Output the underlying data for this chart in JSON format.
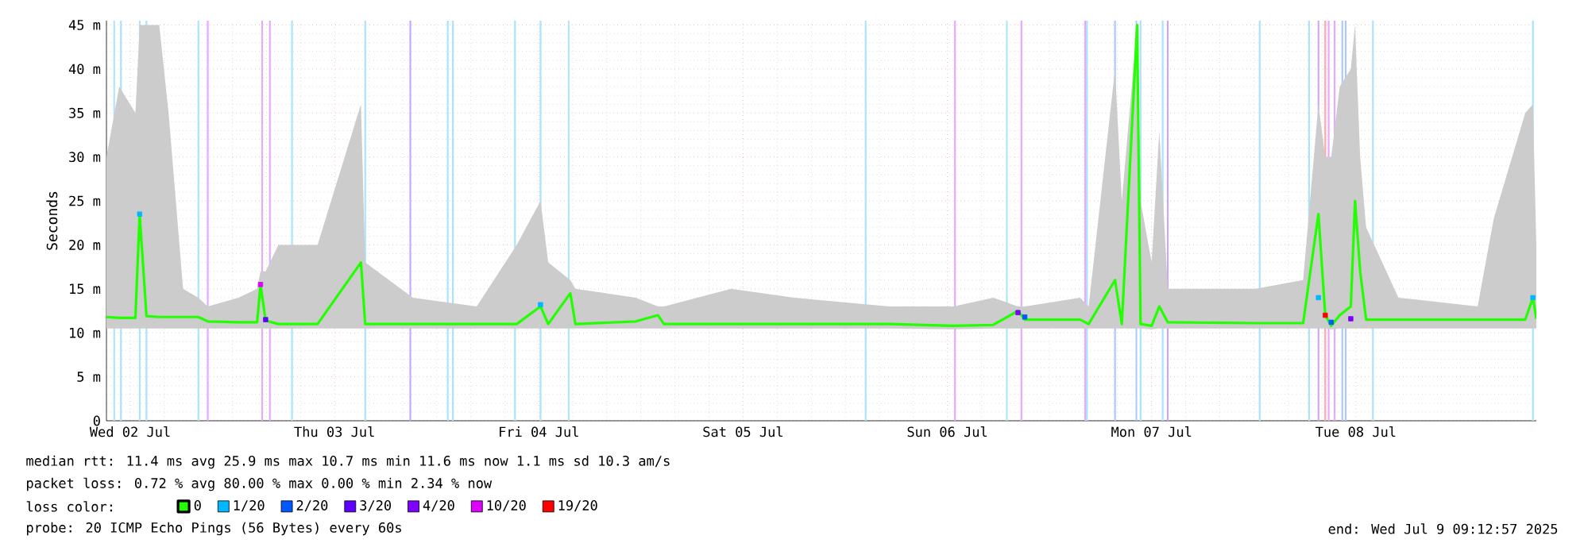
{
  "chart_data": {
    "type": "line",
    "ylabel": "Seconds",
    "legend_title": "loss color:",
    "legend": "bottom",
    "grid": true,
    "xlim": [
      "2025-07-02T09:12",
      "2025-07-09T09:12"
    ],
    "xticks": [
      {
        "value": "2025-07-02T12:00",
        "label": "Wed 02 Jul"
      },
      {
        "value": "2025-07-03T12:00",
        "label": "Thu 03 Jul"
      },
      {
        "value": "2025-07-04T12:00",
        "label": "Fri 04 Jul"
      },
      {
        "value": "2025-07-05T12:00",
        "label": "Sat 05 Jul"
      },
      {
        "value": "2025-07-06T12:00",
        "label": "Sun 06 Jul"
      },
      {
        "value": "2025-07-07T12:00",
        "label": "Mon 07 Jul"
      },
      {
        "value": "2025-07-08T12:00",
        "label": "Tue 08 Jul"
      }
    ],
    "ylim": [
      0,
      45.5
    ],
    "yticks": [
      0,
      {
        "value": 5,
        "label": "5 m"
      },
      {
        "value": 10,
        "label": "10 m"
      },
      {
        "value": 15,
        "label": "15 m"
      },
      {
        "value": 20,
        "label": "20 m"
      },
      {
        "value": 25,
        "label": "25 m"
      },
      {
        "value": 30,
        "label": "30 m"
      },
      {
        "value": 35,
        "label": "35 m"
      },
      {
        "value": 40,
        "label": "40 m"
      },
      {
        "value": 45,
        "label": "45 m"
      }
    ],
    "x": [
      "2025-07-02T09:12",
      "2025-07-02T10:42",
      "2025-07-02T12:36",
      "2025-07-02T13:06",
      "2025-07-02T13:54",
      "2025-07-02T15:24",
      "2025-07-02T16:30",
      "2025-07-02T18:12",
      "2025-07-02T20:00",
      "2025-07-02T21:06",
      "2025-07-03T00:42",
      "2025-07-03T02:54",
      "2025-07-03T03:18",
      "2025-07-03T03:54",
      "2025-07-03T05:24",
      "2025-07-03T10:00",
      "2025-07-03T15:06",
      "2025-07-03T15:36",
      "2025-07-03T21:12",
      "2025-07-04T04:42",
      "2025-07-04T09:24",
      "2025-07-04T12:12",
      "2025-07-04T13:06",
      "2025-07-04T15:42",
      "2025-07-04T16:18",
      "2025-07-04T23:24",
      "2025-07-05T02:00",
      "2025-07-05T02:42",
      "2025-07-05T10:36",
      "2025-07-05T18:00",
      "2025-07-06T05:12",
      "2025-07-06T12:42",
      "2025-07-06T17:24",
      "2025-07-06T20:18",
      "2025-07-06T21:06",
      "2025-07-07T03:36",
      "2025-07-07T04:36",
      "2025-07-07T07:42",
      "2025-07-07T08:30",
      "2025-07-07T10:18",
      "2025-07-07T10:42",
      "2025-07-07T12:00",
      "2025-07-07T12:54",
      "2025-07-07T13:54",
      "2025-07-08T00:12",
      "2025-07-08T05:48",
      "2025-07-08T07:36",
      "2025-07-08T08:24",
      "2025-07-08T09:06",
      "2025-07-08T10:06",
      "2025-07-08T11:24",
      "2025-07-08T11:54",
      "2025-07-08T12:30",
      "2025-07-08T13:12",
      "2025-07-08T17:00",
      "2025-07-09T02:18",
      "2025-07-09T04:12",
      "2025-07-09T07:54",
      "2025-07-09T08:48",
      "2025-07-09T09:12"
    ],
    "series": [
      {
        "name": "0",
        "color": "#22ff00",
        "values": [
          11.8,
          11.7,
          11.7,
          23.5,
          11.9,
          11.8,
          11.8,
          11.8,
          11.8,
          11.3,
          11.2,
          11.2,
          15.5,
          11.4,
          11.0,
          11.0,
          18.0,
          11.0,
          11.0,
          11.0,
          11.0,
          13.0,
          11.0,
          14.5,
          11.0,
          11.3,
          12.0,
          11.0,
          11.0,
          11.0,
          11.0,
          10.8,
          10.9,
          12.5,
          11.5,
          11.5,
          11.0,
          16.0,
          11.0,
          45,
          11.0,
          10.8,
          13.0,
          11.2,
          11.1,
          11.1,
          23.5,
          12.0,
          10.8,
          12.0,
          13.0,
          25.0,
          17.0,
          11.5,
          11.5,
          11.5,
          11.5,
          11.5,
          14.0,
          11.6
        ],
        "lower": [
          10.5,
          10.5,
          10.5,
          10.5,
          10.5,
          10.5,
          10.5,
          10.5,
          10.5,
          10.5,
          10.5,
          10.5,
          10.5,
          10.5,
          10.5,
          10.5,
          10.5,
          10.5,
          10.5,
          10.5,
          10.5,
          10.5,
          10.5,
          10.5,
          10.5,
          10.5,
          10.5,
          10.5,
          10.5,
          10.5,
          10.5,
          10.4,
          10.5,
          10.5,
          10.5,
          10.5,
          10.5,
          10.5,
          10.5,
          10.5,
          10.5,
          10.4,
          10.5,
          10.5,
          10.5,
          10.5,
          10.5,
          10.5,
          10.4,
          10.5,
          10.5,
          10.5,
          10.5,
          10.5,
          10.5,
          10.5,
          10.5,
          10.5,
          10.5,
          10.5
        ],
        "upper": [
          30,
          38,
          35,
          45,
          45,
          45,
          35,
          15,
          14,
          13,
          14,
          15,
          17,
          17,
          20,
          20,
          36,
          18,
          14,
          13,
          20,
          25,
          18,
          16,
          15,
          14,
          13,
          13,
          15,
          14,
          13,
          13,
          14,
          13,
          13,
          14,
          13,
          40,
          25,
          45,
          25,
          18,
          33,
          15,
          15,
          16,
          36,
          30,
          30,
          38,
          40,
          45,
          30,
          22,
          14,
          13,
          23,
          35,
          36,
          20
        ]
      },
      {
        "name": "1/20",
        "color": "#00b8ff",
        "type": "scatter",
        "marker": "square",
        "x": [
          "2025-07-02T13:06",
          "2025-07-04T12:12",
          "2025-07-08T07:36",
          "2025-07-09T08:48"
        ],
        "values": [
          23.5,
          13.2,
          14,
          14
        ]
      },
      {
        "name": "2/20",
        "color": "#0059ff",
        "type": "scatter",
        "marker": "square",
        "x": [
          "2025-07-06T21:06",
          "2025-07-08T09:06"
        ],
        "values": [
          11.8,
          11.2
        ]
      },
      {
        "name": "3/20",
        "color": "#5e00ff",
        "type": "scatter",
        "marker": "square",
        "x": [
          "2025-07-03T03:54"
        ],
        "values": [
          11.5
        ]
      },
      {
        "name": "4/20",
        "color": "#7e00ff",
        "type": "scatter",
        "marker": "square",
        "x": [
          "2025-07-06T20:18",
          "2025-07-08T11:24"
        ],
        "values": [
          12.3,
          11.6
        ]
      },
      {
        "name": "10/20",
        "color": "#dd00ff",
        "type": "scatter",
        "marker": "square",
        "x": [
          "2025-07-03T03:18"
        ],
        "values": [
          15.5
        ]
      },
      {
        "name": "19/20",
        "color": "#ff0000",
        "type": "scatter",
        "marker": "square",
        "x": [
          "2025-07-08T08:24"
        ],
        "values": [
          12.0
        ]
      }
    ],
    "ref_lines": [
      {
        "axis": "x",
        "value": "2025-07-02T10:06",
        "color": "#a8e4ff"
      },
      {
        "axis": "x",
        "value": "2025-07-02T10:54",
        "color": "#a8e4ff"
      },
      {
        "axis": "x",
        "value": "2025-07-02T13:06",
        "color": "#a8e4ff"
      },
      {
        "axis": "x",
        "value": "2025-07-02T13:54",
        "color": "#a8e4ff"
      },
      {
        "axis": "x",
        "value": "2025-07-02T20:00",
        "color": "#a8e4ff"
      },
      {
        "axis": "x",
        "value": "2025-07-03T07:00",
        "color": "#a8e4ff"
      },
      {
        "axis": "x",
        "value": "2025-07-03T15:36",
        "color": "#a8e4ff"
      },
      {
        "axis": "x",
        "value": "2025-07-04T01:18",
        "color": "#a8e4ff"
      },
      {
        "axis": "x",
        "value": "2025-07-04T01:54",
        "color": "#a8e4ff"
      },
      {
        "axis": "x",
        "value": "2025-07-04T09:12",
        "color": "#a8e4ff"
      },
      {
        "axis": "x",
        "value": "2025-07-04T12:12",
        "color": "#a8e4ff"
      },
      {
        "axis": "x",
        "value": "2025-07-04T15:30",
        "color": "#a8e4ff"
      },
      {
        "axis": "x",
        "value": "2025-07-06T02:24",
        "color": "#a8e4ff"
      },
      {
        "axis": "x",
        "value": "2025-07-06T19:00",
        "color": "#a8e4ff"
      },
      {
        "axis": "x",
        "value": "2025-07-07T04:24",
        "color": "#a8e4ff"
      },
      {
        "axis": "x",
        "value": "2025-07-07T10:42",
        "color": "#a8e4ff"
      },
      {
        "axis": "x",
        "value": "2025-07-07T13:18",
        "color": "#a8e4ff"
      },
      {
        "axis": "x",
        "value": "2025-07-08T00:42",
        "color": "#a8e4ff"
      },
      {
        "axis": "x",
        "value": "2025-07-08T06:30",
        "color": "#a8e4ff"
      },
      {
        "axis": "x",
        "value": "2025-07-08T14:00",
        "color": "#a8e4ff"
      },
      {
        "axis": "x",
        "value": "2025-07-09T08:48",
        "color": "#a8e4ff"
      },
      {
        "axis": "x",
        "value": "2025-07-07T07:42",
        "color": "#a8c8ff"
      },
      {
        "axis": "x",
        "value": "2025-07-07T10:12",
        "color": "#a8c8ff"
      },
      {
        "axis": "x",
        "value": "2025-07-08T10:24",
        "color": "#a8c8ff"
      },
      {
        "axis": "x",
        "value": "2025-07-08T10:48",
        "color": "#a8c8ff"
      },
      {
        "axis": "x",
        "value": "2025-07-02T21:06",
        "color": "#e8a8ff"
      },
      {
        "axis": "x",
        "value": "2025-07-03T03:30",
        "color": "#e8a8ff"
      },
      {
        "axis": "x",
        "value": "2025-07-03T04:24",
        "color": "#e8a8ff"
      },
      {
        "axis": "x",
        "value": "2025-07-06T12:54",
        "color": "#e8a8ff"
      },
      {
        "axis": "x",
        "value": "2025-07-06T20:42",
        "color": "#e8a8ff"
      },
      {
        "axis": "x",
        "value": "2025-07-07T04:12",
        "color": "#e8a8ff"
      },
      {
        "axis": "x",
        "value": "2025-07-08T08:48",
        "color": "#e8a8ff"
      },
      {
        "axis": "x",
        "value": "2025-07-08T09:30",
        "color": "#e8a8ff"
      },
      {
        "axis": "x",
        "value": "2025-07-03T20:54",
        "color": "#c8a8ff"
      },
      {
        "axis": "x",
        "value": "2025-07-07T13:54",
        "color": "#c8a8ff"
      },
      {
        "axis": "x",
        "value": "2025-07-08T07:36",
        "color": "#c8a8ff"
      },
      {
        "axis": "x",
        "value": "2025-07-08T08:24",
        "color": "#ffa8a8"
      }
    ],
    "annotations": [
      "median rtt:  11.4 ms avg  25.9 ms max  10.7 ms min  11.6 ms now  1.1 ms sd  10.3   am/s",
      "packet loss: 0.72 % avg  80.00 % max  0.00 % min  2.34 % now",
      "probe:       20 ICMP Echo Pings (56 Bytes) every 60s",
      "end: Wed Jul  9 09:12:57 2025"
    ]
  }
}
